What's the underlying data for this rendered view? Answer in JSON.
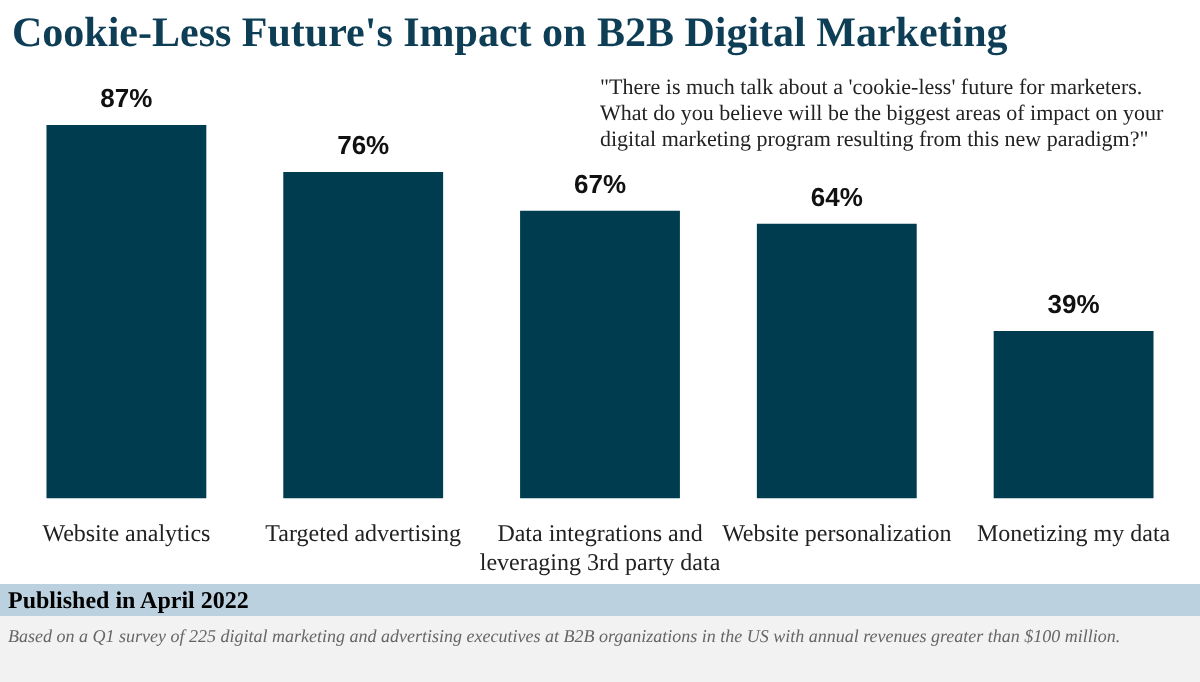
{
  "chart_data": {
    "type": "bar",
    "title": "Cookie-Less Future's Impact on B2B Digital Marketing",
    "subtitle": "\"There is much talk about a 'cookie-less' future for marketers. What do you believe will be the biggest areas of impact on your digital marketing program resulting from this new paradigm?\"",
    "categories": [
      "Website analytics",
      "Targeted advertising",
      "Data integrations and leveraging 3rd party data",
      "Website personalization",
      "Monetizing my data"
    ],
    "values": [
      87,
      76,
      67,
      64,
      39
    ],
    "color": "#003c50",
    "value_labels": [
      "87%",
      "76%",
      "67%",
      "64%",
      "39%"
    ],
    "annotations": [
      "Published in April 2022",
      "Based on a Q1 survey of 225 digital marketing and advertising executives at B2B organizations in the US with annual revenues greater than $100 million."
    ]
  }
}
